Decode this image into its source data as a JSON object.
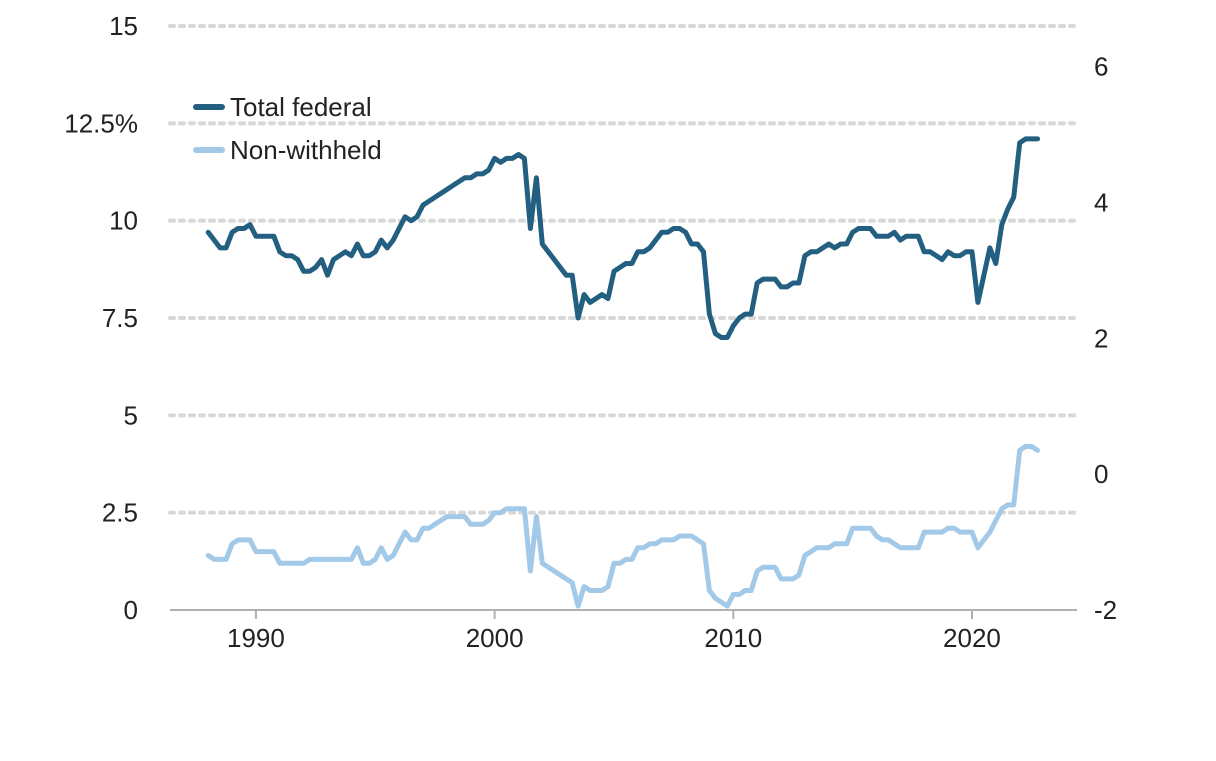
{
  "chart_data": {
    "type": "line",
    "title": "",
    "xlabel": "",
    "ylabel": "",
    "xlim": [
      1986.4,
      2024.4
    ],
    "ylim": [
      0,
      15
    ],
    "y2lim": [
      -2,
      6.6
    ],
    "grid": true,
    "legend_position": "top-left",
    "x_ticks": [
      1990,
      2000,
      2010,
      2020
    ],
    "x_tick_labels": [
      "1990",
      "2000",
      "2010",
      "2020"
    ],
    "y_ticks": [
      0,
      2.5,
      5,
      7.5,
      10,
      12.5,
      15
    ],
    "y_tick_labels": [
      "0",
      "2.5",
      "5",
      "7.5",
      "10",
      "12.5%",
      "15"
    ],
    "y2_ticks": [
      -2,
      0,
      2,
      4,
      6
    ],
    "y2_tick_labels": [
      "-2",
      "0",
      "2",
      "4",
      "6"
    ],
    "series": [
      {
        "name": "Total federal",
        "color": "#235f80",
        "x": [
          1988.0,
          1988.25,
          1988.5,
          1988.75,
          1989.0,
          1989.25,
          1989.5,
          1989.75,
          1990.0,
          1990.25,
          1990.5,
          1990.75,
          1991.0,
          1991.25,
          1991.5,
          1991.75,
          1992.0,
          1992.25,
          1992.5,
          1992.75,
          1993.0,
          1993.25,
          1993.5,
          1993.75,
          1994.0,
          1994.25,
          1994.5,
          1994.75,
          1995.0,
          1995.25,
          1995.5,
          1995.75,
          1996.0,
          1996.25,
          1996.5,
          1996.75,
          1997.0,
          1997.25,
          1997.5,
          1997.75,
          1998.0,
          1998.25,
          1998.5,
          1998.75,
          1999.0,
          1999.25,
          1999.5,
          1999.75,
          2000.0,
          2000.25,
          2000.5,
          2000.75,
          2001.0,
          2001.25,
          2001.5,
          2001.75,
          2002.0,
          2002.25,
          2002.5,
          2002.75,
          2003.0,
          2003.25,
          2003.5,
          2003.75,
          2004.0,
          2004.25,
          2004.5,
          2004.75,
          2005.0,
          2005.25,
          2005.5,
          2005.75,
          2006.0,
          2006.25,
          2006.5,
          2006.75,
          2007.0,
          2007.25,
          2007.5,
          2007.75,
          2008.0,
          2008.25,
          2008.5,
          2008.75,
          2009.0,
          2009.25,
          2009.5,
          2009.75,
          2010.0,
          2010.25,
          2010.5,
          2010.75,
          2011.0,
          2011.25,
          2011.5,
          2011.75,
          2012.0,
          2012.25,
          2012.5,
          2012.75,
          2013.0,
          2013.25,
          2013.5,
          2013.75,
          2014.0,
          2014.25,
          2014.5,
          2014.75,
          2015.0,
          2015.25,
          2015.5,
          2015.75,
          2016.0,
          2016.25,
          2016.5,
          2016.75,
          2017.0,
          2017.25,
          2017.5,
          2017.75,
          2018.0,
          2018.25,
          2018.5,
          2018.75,
          2019.0,
          2019.25,
          2019.5,
          2019.75,
          2020.0,
          2020.25,
          2020.5,
          2020.75,
          2021.0,
          2021.25,
          2021.5,
          2021.75,
          2022.0,
          2022.25,
          2022.5,
          2022.75
        ],
        "values": [
          9.7,
          9.5,
          9.3,
          9.3,
          9.7,
          9.8,
          9.8,
          9.9,
          9.6,
          9.6,
          9.6,
          9.6,
          9.2,
          9.1,
          9.1,
          9.0,
          8.7,
          8.7,
          8.8,
          9.0,
          8.6,
          9.0,
          9.1,
          9.2,
          9.1,
          9.4,
          9.1,
          9.1,
          9.2,
          9.5,
          9.3,
          9.5,
          9.8,
          10.1,
          10.0,
          10.1,
          10.4,
          10.5,
          10.6,
          10.7,
          10.8,
          10.9,
          11.0,
          11.1,
          11.1,
          11.2,
          11.2,
          11.3,
          11.6,
          11.5,
          11.6,
          11.6,
          11.7,
          11.6,
          9.8,
          11.1,
          9.4,
          9.2,
          9.0,
          8.8,
          8.6,
          8.6,
          7.5,
          8.1,
          7.9,
          8.0,
          8.1,
          8.0,
          8.7,
          8.8,
          8.9,
          8.9,
          9.2,
          9.2,
          9.3,
          9.5,
          9.7,
          9.7,
          9.8,
          9.8,
          9.7,
          9.4,
          9.4,
          9.2,
          7.6,
          7.1,
          7.0,
          7.0,
          7.3,
          7.5,
          7.6,
          7.6,
          8.4,
          8.5,
          8.5,
          8.5,
          8.3,
          8.3,
          8.4,
          8.4,
          9.1,
          9.2,
          9.2,
          9.3,
          9.4,
          9.3,
          9.4,
          9.4,
          9.7,
          9.8,
          9.8,
          9.8,
          9.6,
          9.6,
          9.6,
          9.7,
          9.5,
          9.6,
          9.6,
          9.6,
          9.2,
          9.2,
          9.1,
          9.0,
          9.2,
          9.1,
          9.1,
          9.2,
          9.2,
          7.9,
          8.6,
          9.3,
          8.9,
          9.9,
          10.3,
          10.6,
          12.0,
          12.1,
          12.1,
          12.1
        ]
      },
      {
        "name": "Non-withheld",
        "color": "#a3c9e8",
        "x": [
          1988.0,
          1988.25,
          1988.5,
          1988.75,
          1989.0,
          1989.25,
          1989.5,
          1989.75,
          1990.0,
          1990.25,
          1990.5,
          1990.75,
          1991.0,
          1991.25,
          1991.5,
          1991.75,
          1992.0,
          1992.25,
          1992.5,
          1992.75,
          1993.0,
          1993.25,
          1993.5,
          1993.75,
          1994.0,
          1994.25,
          1994.5,
          1994.75,
          1995.0,
          1995.25,
          1995.5,
          1995.75,
          1996.0,
          1996.25,
          1996.5,
          1996.75,
          1997.0,
          1997.25,
          1997.5,
          1997.75,
          1998.0,
          1998.25,
          1998.5,
          1998.75,
          1999.0,
          1999.25,
          1999.5,
          1999.75,
          2000.0,
          2000.25,
          2000.5,
          2000.75,
          2001.0,
          2001.25,
          2001.5,
          2001.75,
          2002.0,
          2002.25,
          2002.5,
          2002.75,
          2003.0,
          2003.25,
          2003.5,
          2003.75,
          2004.0,
          2004.25,
          2004.5,
          2004.75,
          2005.0,
          2005.25,
          2005.5,
          2005.75,
          2006.0,
          2006.25,
          2006.5,
          2006.75,
          2007.0,
          2007.25,
          2007.5,
          2007.75,
          2008.0,
          2008.25,
          2008.5,
          2008.75,
          2009.0,
          2009.25,
          2009.5,
          2009.75,
          2010.0,
          2010.25,
          2010.5,
          2010.75,
          2011.0,
          2011.25,
          2011.5,
          2011.75,
          2012.0,
          2012.25,
          2012.5,
          2012.75,
          2013.0,
          2013.25,
          2013.5,
          2013.75,
          2014.0,
          2014.25,
          2014.5,
          2014.75,
          2015.0,
          2015.25,
          2015.5,
          2015.75,
          2016.0,
          2016.25,
          2016.5,
          2016.75,
          2017.0,
          2017.25,
          2017.5,
          2017.75,
          2018.0,
          2018.25,
          2018.5,
          2018.75,
          2019.0,
          2019.25,
          2019.5,
          2019.75,
          2020.0,
          2020.25,
          2020.5,
          2020.75,
          2021.0,
          2021.25,
          2021.5,
          2021.75,
          2022.0,
          2022.25,
          2022.5,
          2022.75
        ],
        "values": [
          1.4,
          1.3,
          1.3,
          1.3,
          1.7,
          1.8,
          1.8,
          1.8,
          1.5,
          1.5,
          1.5,
          1.5,
          1.2,
          1.2,
          1.2,
          1.2,
          1.2,
          1.3,
          1.3,
          1.3,
          1.3,
          1.3,
          1.3,
          1.3,
          1.3,
          1.6,
          1.2,
          1.2,
          1.3,
          1.6,
          1.3,
          1.4,
          1.7,
          2.0,
          1.8,
          1.8,
          2.1,
          2.1,
          2.2,
          2.3,
          2.4,
          2.4,
          2.4,
          2.4,
          2.2,
          2.2,
          2.2,
          2.3,
          2.5,
          2.5,
          2.6,
          2.6,
          2.6,
          2.6,
          1.0,
          2.4,
          1.2,
          1.1,
          1.0,
          0.9,
          0.8,
          0.7,
          0.1,
          0.6,
          0.5,
          0.5,
          0.5,
          0.6,
          1.2,
          1.2,
          1.3,
          1.3,
          1.6,
          1.6,
          1.7,
          1.7,
          1.8,
          1.8,
          1.8,
          1.9,
          1.9,
          1.9,
          1.8,
          1.7,
          0.5,
          0.3,
          0.2,
          0.1,
          0.4,
          0.4,
          0.5,
          0.5,
          1.0,
          1.1,
          1.1,
          1.1,
          0.8,
          0.8,
          0.8,
          0.9,
          1.4,
          1.5,
          1.6,
          1.6,
          1.6,
          1.7,
          1.7,
          1.7,
          2.1,
          2.1,
          2.1,
          2.1,
          1.9,
          1.8,
          1.8,
          1.7,
          1.6,
          1.6,
          1.6,
          1.6,
          2.0,
          2.0,
          2.0,
          2.0,
          2.1,
          2.1,
          2.0,
          2.0,
          2.0,
          1.6,
          1.8,
          2.0,
          2.3,
          2.6,
          2.7,
          2.7,
          4.1,
          4.2,
          4.2,
          4.1
        ]
      }
    ]
  },
  "colors": {
    "grid": "#d8d8d8",
    "axis": "#b0b0b0",
    "text": "#222222"
  }
}
